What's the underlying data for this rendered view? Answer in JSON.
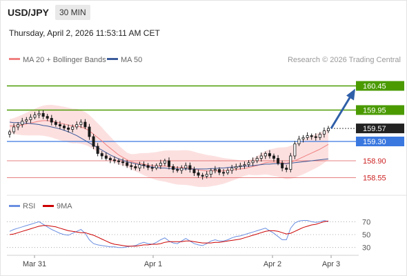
{
  "header": {
    "pair": "USD/JPY",
    "timeframe": "30 MIN",
    "datetime": "Thursday, April 2, 2026 11:53:11 AM CET"
  },
  "legend": {
    "ma20_bb": "MA 20 + Bollinger Bands",
    "ma50": "MA 50",
    "credit": "Research © 2026 Trading Central",
    "rsi": "RSI",
    "rsi_ma": "9MA"
  },
  "colors": {
    "candle": "#1a1a1a",
    "bollinger_fill": "#fbd5d5",
    "ma20": "#f08080",
    "ma50": "#3a5a9a",
    "resistance": "#4a9a00",
    "pivot": "#3a78e0",
    "support": "#e06060",
    "current": "#222222",
    "arrow": "#2f5fa8",
    "rsi": "#6a8ee0",
    "rsi_ma": "#cc0000"
  },
  "chart_data": [
    {
      "type": "candlestick",
      "title": "USD/JPY",
      "x_ticks": [
        "Mar 31",
        "Apr 1",
        "Apr 2",
        "Apr 3"
      ],
      "levels": [
        {
          "value": 160.45,
          "label": "160.45",
          "role": "resistance"
        },
        {
          "value": 159.95,
          "label": "159.95",
          "role": "resistance"
        },
        {
          "value": 159.57,
          "label": "159.57",
          "role": "current"
        },
        {
          "value": 159.3,
          "label": "159.30",
          "role": "pivot"
        },
        {
          "value": 158.9,
          "label": "158.90",
          "role": "support"
        },
        {
          "value": 158.55,
          "label": "158.55",
          "role": "support"
        }
      ],
      "ylim": [
        158.3,
        160.8
      ],
      "closes": [
        159.5,
        159.6,
        159.65,
        159.72,
        159.75,
        159.8,
        159.85,
        159.88,
        159.82,
        159.78,
        159.7,
        159.65,
        159.62,
        159.58,
        159.55,
        159.6,
        159.65,
        159.7,
        159.6,
        159.4,
        159.2,
        159.05,
        159.0,
        158.95,
        158.92,
        158.9,
        158.88,
        158.86,
        158.8,
        158.78,
        158.75,
        158.82,
        158.8,
        158.76,
        158.75,
        158.8,
        158.85,
        158.9,
        158.78,
        158.72,
        158.7,
        158.75,
        158.8,
        158.72,
        158.65,
        158.6,
        158.58,
        158.62,
        158.7,
        158.72,
        158.66,
        158.65,
        158.7,
        158.75,
        158.78,
        158.8,
        158.82,
        158.86,
        158.9,
        158.95,
        159.0,
        159.05,
        159.0,
        158.95,
        158.85,
        158.75,
        158.72,
        159.0,
        159.25,
        159.35,
        159.38,
        159.42,
        159.4,
        159.38,
        159.45,
        159.52,
        159.57
      ],
      "ma20": [
        159.62,
        159.62,
        159.63,
        159.64,
        159.66,
        159.68,
        159.7,
        159.72,
        159.73,
        159.73,
        159.72,
        159.7,
        159.68,
        159.66,
        159.64,
        159.62,
        159.62,
        159.6,
        159.57,
        159.52,
        159.45,
        159.38,
        159.31,
        159.23,
        159.16,
        159.09,
        159.02,
        158.97,
        158.92,
        158.88,
        158.86,
        158.85,
        158.83,
        158.81,
        158.8,
        158.79,
        158.79,
        158.79,
        158.78,
        158.77,
        158.76,
        158.76,
        158.76,
        158.75,
        158.73,
        158.71,
        158.7,
        158.69,
        158.69,
        158.69,
        158.69,
        158.69,
        158.7,
        158.71,
        158.72,
        158.73,
        158.74,
        158.76,
        158.78,
        158.8,
        158.83,
        158.86,
        158.87,
        158.87,
        158.87,
        158.86,
        158.85,
        158.87,
        158.9,
        158.94,
        158.98,
        159.02,
        159.06,
        159.1,
        159.14,
        159.19,
        159.24
      ],
      "ma50": [
        159.7,
        159.69,
        159.69,
        159.68,
        159.68,
        159.67,
        159.66,
        159.65,
        159.63,
        159.62,
        159.6,
        159.58,
        159.56,
        159.53,
        159.5,
        159.46,
        159.42,
        159.37,
        159.32,
        159.27,
        159.22,
        159.17,
        159.12,
        159.07,
        159.02,
        158.98,
        158.94,
        158.91,
        158.88,
        158.86,
        158.84,
        158.82,
        158.8,
        158.78,
        158.77,
        158.76,
        158.75,
        158.75,
        158.74,
        158.74,
        158.73,
        158.73,
        158.73,
        158.73,
        158.73,
        158.73,
        158.73,
        158.73,
        158.74,
        158.74,
        158.75,
        158.75,
        158.76,
        158.77,
        158.77,
        158.78,
        158.79,
        158.79,
        158.8,
        158.81,
        158.82,
        158.83,
        158.83,
        158.84,
        158.84,
        158.84,
        158.84,
        158.85,
        158.86,
        158.87,
        158.88,
        158.89,
        158.9,
        158.91,
        158.92,
        158.93,
        158.94
      ]
    },
    {
      "type": "line",
      "title": "RSI",
      "series": [
        {
          "name": "RSI"
        },
        {
          "name": "9MA"
        }
      ],
      "y_ticks": [
        70,
        50,
        30
      ],
      "ylim": [
        20,
        80
      ],
      "rsi": [
        55,
        58,
        60,
        62,
        64,
        66,
        68,
        70,
        66,
        62,
        58,
        55,
        52,
        50,
        49,
        52,
        55,
        58,
        52,
        42,
        36,
        34,
        33,
        32,
        31,
        31,
        30,
        30,
        31,
        32,
        33,
        36,
        38,
        36,
        35,
        38,
        42,
        45,
        40,
        37,
        36,
        40,
        44,
        40,
        36,
        34,
        33,
        36,
        40,
        42,
        40,
        40,
        42,
        45,
        47,
        48,
        50,
        52,
        54,
        56,
        58,
        60,
        56,
        52,
        47,
        42,
        42,
        60,
        68,
        71,
        72,
        72,
        70,
        69,
        70,
        72,
        70
      ],
      "rsi_ma": [
        50,
        51,
        53,
        55,
        57,
        59,
        61,
        63,
        64,
        64,
        63,
        62,
        60,
        58,
        56,
        55,
        54,
        53,
        53,
        51,
        49,
        46,
        43,
        40,
        37,
        35,
        34,
        33,
        32,
        32,
        32,
        33,
        34,
        34,
        35,
        35,
        36,
        38,
        39,
        39,
        39,
        39,
        40,
        40,
        39,
        38,
        37,
        37,
        37,
        38,
        38,
        39,
        40,
        41,
        42,
        43,
        45,
        47,
        49,
        51,
        53,
        55,
        56,
        56,
        55,
        53,
        51,
        52,
        55,
        58,
        61,
        63,
        65,
        66,
        68,
        70,
        71
      ]
    }
  ]
}
